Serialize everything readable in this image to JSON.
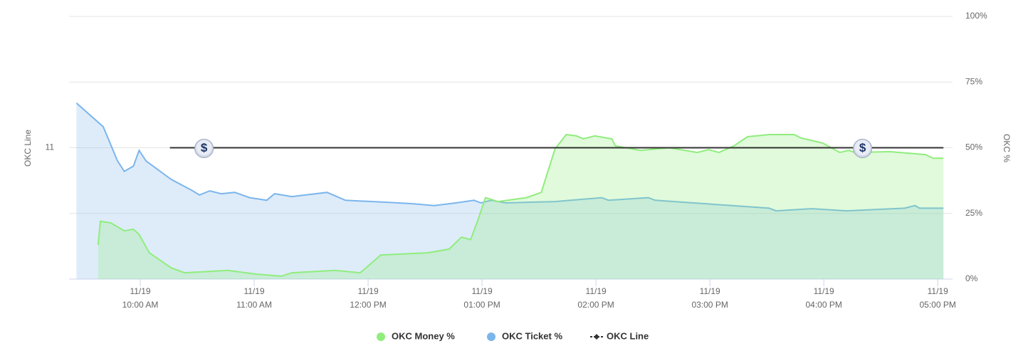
{
  "chart_data": {
    "type": "line",
    "y_title": "OKC Line",
    "y2_title": "OKC %",
    "xlim": [
      9.375,
      17.13
    ],
    "xticks": [
      {
        "value": 10,
        "label": [
          "11/19",
          "10:00 AM"
        ]
      },
      {
        "value": 11,
        "label": [
          "11/19",
          "11:00 AM"
        ]
      },
      {
        "value": 12,
        "label": [
          "11/19",
          "12:00 PM"
        ]
      },
      {
        "value": 13,
        "label": [
          "11/19",
          "01:00 PM"
        ]
      },
      {
        "value": 14,
        "label": [
          "11/19",
          "02:00 PM"
        ]
      },
      {
        "value": 15,
        "label": [
          "11/19",
          "03:00 PM"
        ]
      },
      {
        "value": 16,
        "label": [
          "11/19",
          "04:00 PM"
        ]
      },
      {
        "value": 17,
        "label": [
          "11/19",
          "05:00 PM"
        ]
      }
    ],
    "ylim": [
      10,
      12
    ],
    "yticks": [
      11
    ],
    "y2lim": [
      0,
      100
    ],
    "y2ticks": [
      {
        "value": 0,
        "label": "0%"
      },
      {
        "value": 25,
        "label": "25%"
      },
      {
        "value": 50,
        "label": "50%"
      },
      {
        "value": 75,
        "label": "75%"
      },
      {
        "value": 100,
        "label": "100%"
      }
    ],
    "grid": true,
    "legend": "bottom",
    "series": [
      {
        "name": "OKC Ticket %",
        "color": "#7cb5ec",
        "fill": "rgba(124,181,236,0.25)",
        "axis": "y2",
        "area": true,
        "x": [
          9.44,
          9.675,
          9.8,
          9.86,
          9.94,
          9.99,
          10.05,
          10.27,
          10.46,
          10.52,
          10.61,
          10.71,
          10.83,
          10.96,
          11.11,
          11.18,
          11.33,
          11.64,
          11.8,
          12.14,
          12.39,
          12.58,
          12.77,
          12.93,
          12.99,
          13.08,
          13.21,
          13.64,
          14.05,
          14.11,
          14.46,
          14.52,
          14.96,
          15.52,
          15.58,
          15.89,
          16.2,
          16.71,
          16.8,
          16.84,
          17.05
        ],
        "values": [
          67,
          58,
          45,
          41,
          43,
          49,
          45,
          38,
          33.6,
          32,
          33.6,
          32.5,
          33,
          31,
          30,
          32.5,
          31.4,
          33,
          30,
          29.3,
          28.7,
          28,
          29,
          30,
          29,
          30,
          29,
          29.5,
          31,
          30,
          31,
          30,
          28.7,
          27,
          26,
          26.8,
          26,
          27,
          28,
          27,
          27
        ]
      },
      {
        "name": "OKC Money %",
        "color": "#90ed7d",
        "fill": "rgba(144,237,125,0.28)",
        "axis": "y2",
        "area": true,
        "x": [
          9.63,
          9.65,
          9.74,
          9.86,
          9.94,
          9.99,
          10.08,
          10.27,
          10.39,
          10.77,
          11.02,
          11.24,
          11.33,
          11.71,
          11.93,
          11.99,
          12.11,
          12.52,
          12.71,
          12.82,
          12.9,
          12.96,
          13.03,
          13.14,
          13.39,
          13.52,
          13.64,
          13.74,
          13.83,
          13.89,
          13.99,
          14.14,
          14.17,
          14.39,
          14.64,
          14.89,
          14.99,
          15.08,
          15.21,
          15.33,
          15.52,
          15.74,
          15.8,
          15.99,
          16.14,
          16.22,
          16.27,
          16.58,
          16.89,
          16.96,
          17.05
        ],
        "values": [
          13,
          22,
          21.4,
          18.4,
          19,
          17,
          10,
          4.3,
          2.4,
          3.3,
          1.9,
          1.1,
          2.4,
          3.3,
          2.4,
          4.6,
          9.2,
          10,
          11.4,
          16,
          15,
          22,
          31,
          29.5,
          31,
          33,
          49.5,
          55,
          54.5,
          53.4,
          54.5,
          53.4,
          50.7,
          49,
          50,
          48.2,
          49.3,
          48.2,
          50.7,
          54.2,
          55,
          55,
          53.7,
          51.8,
          48.2,
          49,
          48.2,
          48.5,
          47.4,
          46,
          46
        ]
      },
      {
        "name": "OKC Line",
        "color": "#333333",
        "axis": "y",
        "x": [
          10.26,
          17.05
        ],
        "values": [
          11,
          11
        ],
        "marker_x": [
          10.56,
          16.34
        ]
      }
    ]
  }
}
